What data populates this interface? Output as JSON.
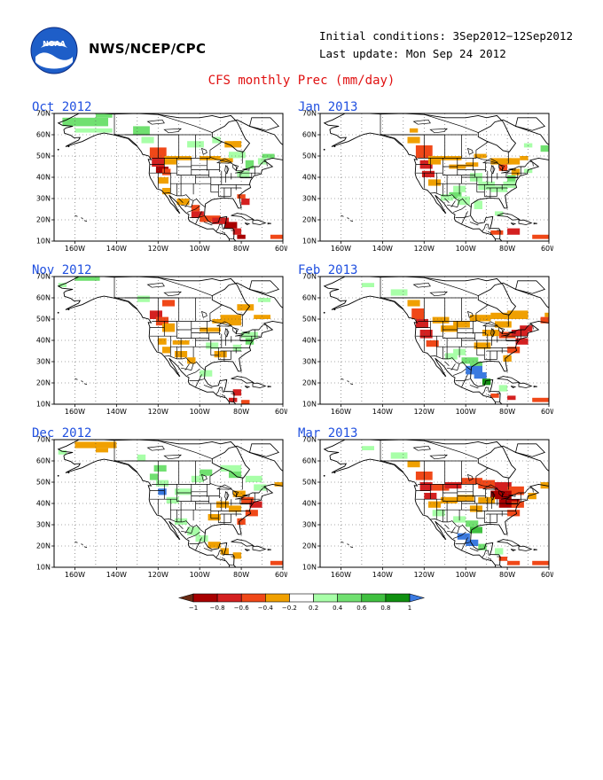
{
  "header": {
    "org": "NWS/NCEP/CPC",
    "initial_conditions": "Initial conditions: 3Sep2012−12Sep2012",
    "last_update": "Last update: Mon Sep 24 2012",
    "title": "CFS monthly Prec (mm/day)"
  },
  "logo": {
    "icon": "noaa-logo-icon",
    "text": "NOAA"
  },
  "map": {
    "lat_labels": [
      "70N",
      "60N",
      "50N",
      "40N",
      "30N",
      "20N",
      "10N"
    ],
    "lon_labels": [
      "160W",
      "140W",
      "120W",
      "100W",
      "80W",
      "60W"
    ]
  },
  "panels": [
    {
      "title": "Oct 2012"
    },
    {
      "title": "Jan 2013"
    },
    {
      "title": "Nov 2012"
    },
    {
      "title": "Feb 2013"
    },
    {
      "title": "Dec 2012"
    },
    {
      "title": "Mar 2013"
    }
  ],
  "colorbar": {
    "labels": [
      "−1",
      "−0.8",
      "−0.6",
      "−0.4",
      "−0.2",
      "0.2",
      "0.4",
      "0.6",
      "0.8",
      "1"
    ],
    "colors": [
      "#6a2a14",
      "#a80000",
      "#d42020",
      "#f04818",
      "#f0a000",
      "#ffffff",
      "#a8ffa8",
      "#70e070",
      "#40c040",
      "#109010",
      "#3a7ae0"
    ]
  },
  "colors": {
    "title": "#e01010",
    "panel_title": "#2050e0"
  }
}
